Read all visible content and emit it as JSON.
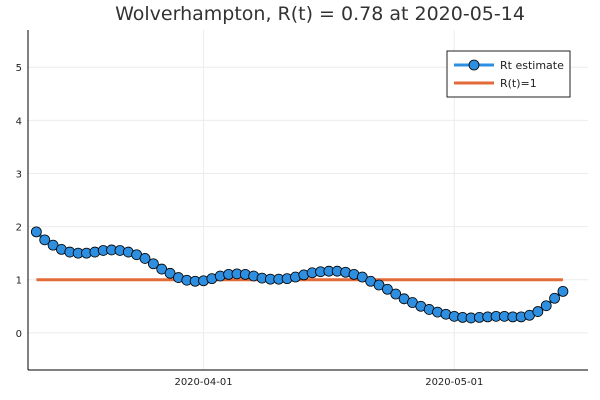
{
  "chart_data": {
    "type": "line",
    "title": "Wolverhampton, R(t) = 0.78 at 2020-05-14",
    "xlabel": "",
    "ylabel": "",
    "ylim": [
      -0.7,
      5.7
    ],
    "xlim": [
      "2020-03-11",
      "2020-05-17"
    ],
    "x_ticks": [
      "2020-04-01",
      "2020-05-01"
    ],
    "y_ticks": [
      0,
      1,
      2,
      3,
      4,
      5
    ],
    "grid": true,
    "legend_position": "top-right",
    "series": [
      {
        "name": "Rt estimate",
        "color": "#2e8fe0",
        "marker": "circle",
        "x": [
          "2020-03-12",
          "2020-03-13",
          "2020-03-14",
          "2020-03-15",
          "2020-03-16",
          "2020-03-17",
          "2020-03-18",
          "2020-03-19",
          "2020-03-20",
          "2020-03-21",
          "2020-03-22",
          "2020-03-23",
          "2020-03-24",
          "2020-03-25",
          "2020-03-26",
          "2020-03-27",
          "2020-03-28",
          "2020-03-29",
          "2020-03-30",
          "2020-03-31",
          "2020-04-01",
          "2020-04-02",
          "2020-04-03",
          "2020-04-04",
          "2020-04-05",
          "2020-04-06",
          "2020-04-07",
          "2020-04-08",
          "2020-04-09",
          "2020-04-10",
          "2020-04-11",
          "2020-04-12",
          "2020-04-13",
          "2020-04-14",
          "2020-04-15",
          "2020-04-16",
          "2020-04-17",
          "2020-04-18",
          "2020-04-19",
          "2020-04-20",
          "2020-04-21",
          "2020-04-22",
          "2020-04-23",
          "2020-04-24",
          "2020-04-25",
          "2020-04-26",
          "2020-04-27",
          "2020-04-28",
          "2020-04-29",
          "2020-04-30",
          "2020-05-01",
          "2020-05-02",
          "2020-05-03",
          "2020-05-04",
          "2020-05-05",
          "2020-05-06",
          "2020-05-07",
          "2020-05-08",
          "2020-05-09",
          "2020-05-10",
          "2020-05-11",
          "2020-05-12",
          "2020-05-13",
          "2020-05-14"
        ],
        "values": [
          1.9,
          1.75,
          1.65,
          1.57,
          1.52,
          1.5,
          1.5,
          1.52,
          1.55,
          1.56,
          1.55,
          1.52,
          1.47,
          1.4,
          1.3,
          1.2,
          1.12,
          1.04,
          0.99,
          0.97,
          0.98,
          1.02,
          1.07,
          1.1,
          1.11,
          1.1,
          1.07,
          1.03,
          1.01,
          1.01,
          1.02,
          1.05,
          1.09,
          1.13,
          1.15,
          1.16,
          1.16,
          1.14,
          1.1,
          1.05,
          0.97,
          0.9,
          0.82,
          0.73,
          0.64,
          0.57,
          0.5,
          0.44,
          0.39,
          0.35,
          0.31,
          0.29,
          0.28,
          0.29,
          0.3,
          0.31,
          0.31,
          0.3,
          0.3,
          0.33,
          0.4,
          0.51,
          0.65,
          0.78
        ]
      },
      {
        "name": "R(t)=1",
        "color": "#e26b39",
        "marker": "none",
        "x": [
          "2020-03-12",
          "2020-05-14"
        ],
        "values": [
          1,
          1
        ]
      }
    ]
  }
}
